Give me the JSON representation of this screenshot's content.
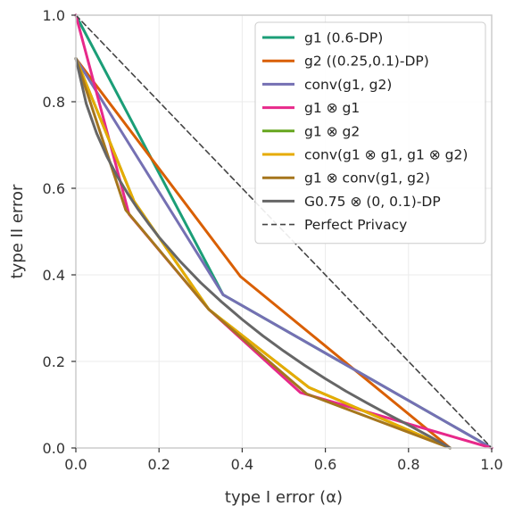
{
  "chart_data": {
    "type": "line",
    "title": "",
    "xlabel": "type I error (α)",
    "ylabel": "type II error",
    "xlim": [
      0,
      1
    ],
    "ylim": [
      0,
      1
    ],
    "xticks": [
      "0.0",
      "0.2",
      "0.4",
      "0.6",
      "0.8",
      "1.0"
    ],
    "yticks": [
      "0.0",
      "0.2",
      "0.4",
      "0.6",
      "0.8",
      "1.0"
    ],
    "grid": true,
    "legend_position": "top-right",
    "series": [
      {
        "name": "g1 (0.6-DP)",
        "color": "#1b9e77",
        "dashed": false,
        "x": [
          0,
          0.354,
          1
        ],
        "y": [
          1,
          0.354,
          0
        ]
      },
      {
        "name": "g2 ((0.25,0.1)-DP)",
        "color": "#d95f02",
        "dashed": false,
        "x": [
          0,
          0.396,
          0.9
        ],
        "y": [
          0.9,
          0.396,
          0
        ]
      },
      {
        "name": "conv(g1, g2)",
        "color": "#7570b3",
        "dashed": false,
        "x": [
          0,
          0.354,
          1
        ],
        "y": [
          0.9,
          0.354,
          0
        ]
      },
      {
        "name": "g1 ⊗ g1",
        "color": "#e7298a",
        "dashed": false,
        "x": [
          0,
          0.128,
          0.32,
          0.54,
          1
        ],
        "y": [
          1,
          0.54,
          0.32,
          0.128,
          0
        ]
      },
      {
        "name": "g1 ⊗ g2",
        "color": "#66a61e",
        "dashed": false,
        "x": [
          0,
          0.14,
          0.32,
          0.56,
          0.9
        ],
        "y": [
          0.9,
          0.57,
          0.32,
          0.14,
          0
        ]
      },
      {
        "name": "conv(g1 ⊗ g1, g1 ⊗ g2)",
        "color": "#e6ab02",
        "dashed": false,
        "x": [
          0,
          0.14,
          0.32,
          0.56,
          0.9
        ],
        "y": [
          0.9,
          0.57,
          0.32,
          0.14,
          0
        ]
      },
      {
        "name": "g1 ⊗ conv(g1, g2)",
        "color": "#a6761d",
        "dashed": false,
        "x": [
          0,
          0.12,
          0.32,
          0.555,
          0.9
        ],
        "y": [
          0.9,
          0.55,
          0.32,
          0.125,
          0
        ]
      },
      {
        "name": "G0.75 ⊗ (0, 0.1)-DP",
        "color": "#666666",
        "dashed": false,
        "x": [
          0,
          0.025,
          0.05,
          0.075,
          0.1,
          0.125,
          0.15,
          0.175,
          0.2,
          0.25,
          0.3,
          0.35,
          0.4,
          0.45,
          0.5,
          0.55,
          0.6,
          0.65,
          0.7,
          0.75,
          0.8,
          0.85,
          0.9
        ],
        "y": [
          0.9,
          0.795,
          0.727,
          0.673,
          0.627,
          0.587,
          0.551,
          0.518,
          0.487,
          0.432,
          0.382,
          0.338,
          0.297,
          0.259,
          0.224,
          0.191,
          0.16,
          0.131,
          0.104,
          0.078,
          0.053,
          0.027,
          0
        ]
      },
      {
        "name": "Perfect Privacy",
        "color": "#444444",
        "dashed": true,
        "x": [
          0,
          1
        ],
        "y": [
          1,
          0
        ]
      }
    ]
  }
}
